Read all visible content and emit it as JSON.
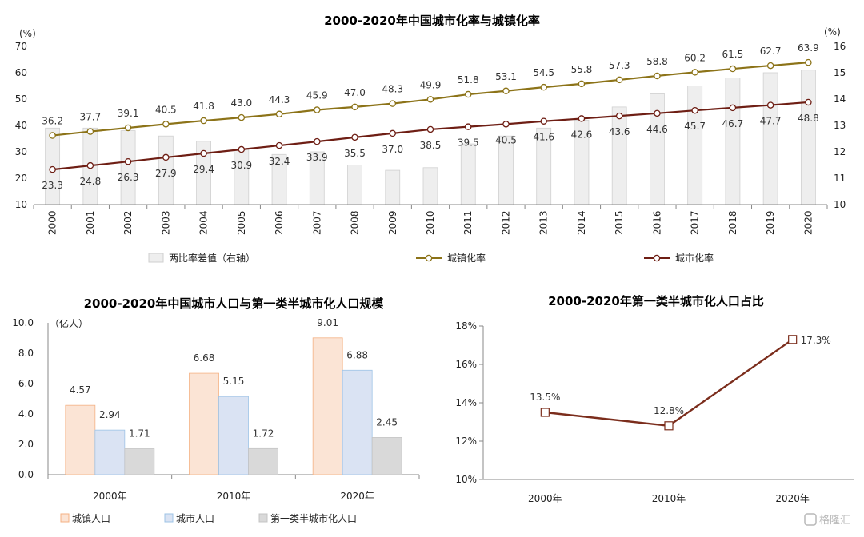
{
  "chart_data": [
    {
      "type": "bar",
      "title": "2000-2020年中国城市化率与城镇化率",
      "y_left_unit": "(%)",
      "y_right_unit": "(%)",
      "y_left_lim": [
        10,
        70
      ],
      "y_left_ticks": [
        10,
        20,
        30,
        40,
        50,
        60,
        70
      ],
      "y_right_lim": [
        10,
        16
      ],
      "y_right_ticks": [
        10,
        11,
        12,
        13,
        14,
        15,
        16
      ],
      "grid": false,
      "legend_position": "bottom",
      "categories": [
        "2000",
        "2001",
        "2002",
        "2003",
        "2004",
        "2005",
        "2006",
        "2007",
        "2008",
        "2009",
        "2010",
        "2011",
        "2012",
        "2013",
        "2014",
        "2015",
        "2016",
        "2017",
        "2018",
        "2019",
        "2020"
      ],
      "series": [
        {
          "name": "两比率差值（右轴）",
          "kind": "bar",
          "axis": "right",
          "color": "#eeeeee",
          "values": [
            12.9,
            12.9,
            12.8,
            12.6,
            12.4,
            12.1,
            11.9,
            12.0,
            11.5,
            11.3,
            11.4,
            12.3,
            12.6,
            12.9,
            13.2,
            13.7,
            14.2,
            14.5,
            14.8,
            15.0,
            15.1
          ]
        },
        {
          "name": "城镇化率",
          "kind": "line",
          "axis": "left",
          "color": "#8c7318",
          "values": [
            36.2,
            37.7,
            39.1,
            40.5,
            41.8,
            43.0,
            44.3,
            45.9,
            47.0,
            48.3,
            49.9,
            51.8,
            53.1,
            54.5,
            55.8,
            57.3,
            58.8,
            60.2,
            61.5,
            62.7,
            63.9
          ],
          "labels": [
            "36.2",
            "37.7",
            "39.1",
            "40.5",
            "41.8",
            "43.0",
            "44.3",
            "45.9",
            "47.0",
            "48.3",
            "49.9",
            "51.8",
            "53.1",
            "54.5",
            "55.8",
            "57.3",
            "58.8",
            "60.2",
            "61.5",
            "62.7",
            "63.9"
          ]
        },
        {
          "name": "城市化率",
          "kind": "line",
          "axis": "left",
          "color": "#6e1e14",
          "values": [
            23.3,
            24.8,
            26.3,
            27.9,
            29.4,
            30.9,
            32.4,
            33.9,
            35.5,
            37.0,
            38.5,
            39.5,
            40.5,
            41.6,
            42.6,
            43.6,
            44.6,
            45.7,
            46.7,
            47.7,
            48.8
          ],
          "labels": [
            "23.3",
            "24.8",
            "26.3",
            "27.9",
            "29.4",
            "30.9",
            "32.4",
            "33.9",
            "35.5",
            "37.0",
            "38.5",
            "39.5",
            "40.5",
            "41.6",
            "42.6",
            "43.6",
            "44.6",
            "45.7",
            "46.7",
            "47.7",
            "48.8"
          ]
        }
      ]
    },
    {
      "type": "bar",
      "title": "2000-2020年中国城市人口与第一类半城市化人口规模",
      "y_unit": "（亿人）",
      "ylim": [
        0,
        10
      ],
      "y_ticks": [
        "0.0",
        "2.0",
        "4.0",
        "6.0",
        "8.0",
        "10.0"
      ],
      "grid": false,
      "legend_position": "bottom",
      "categories": [
        "2000年",
        "2010年",
        "2020年"
      ],
      "series": [
        {
          "name": "城镇人口",
          "fill": "#fbe4d5",
          "stroke": "#f4b183",
          "values": [
            4.57,
            6.68,
            9.01
          ],
          "labels": [
            "4.57",
            "6.68",
            "9.01"
          ]
        },
        {
          "name": "城市人口",
          "fill": "#dae3f3",
          "stroke": "#9dc3e6",
          "values": [
            2.94,
            5.15,
            6.88
          ],
          "labels": [
            "2.94",
            "5.15",
            "6.88"
          ]
        },
        {
          "name": "第一类半城市化人口",
          "fill": "#d9d9d9",
          "stroke": "#c4c4c4",
          "values": [
            1.71,
            1.72,
            2.45
          ],
          "labels": [
            "1.71",
            "1.72",
            "2.45"
          ]
        }
      ]
    },
    {
      "type": "line",
      "title": "2000-2020年第一类半城市化人口占比",
      "ylim": [
        10,
        18
      ],
      "y_ticks": [
        "10%",
        "12%",
        "14%",
        "16%",
        "18%"
      ],
      "grid": false,
      "categories": [
        "2000年",
        "2010年",
        "2020年"
      ],
      "series": [
        {
          "color": "#7b2d1c",
          "values": [
            13.5,
            12.8,
            17.3
          ],
          "labels": [
            "13.5%",
            "12.8%",
            "17.3%"
          ]
        }
      ]
    }
  ],
  "watermark": {
    "text": "格隆汇",
    "icon": "glh-logo-icon"
  }
}
